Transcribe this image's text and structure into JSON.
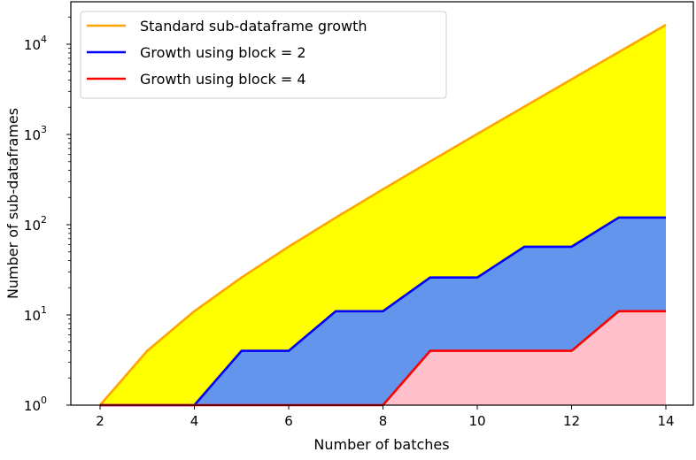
{
  "chart_data": {
    "type": "area",
    "title": "",
    "xlabel": "Number of batches",
    "ylabel": "Number of sub-dataframes",
    "yscale": "log",
    "ylim": [
      1,
      20000
    ],
    "xlim": [
      1.4,
      14.6
    ],
    "x": [
      2,
      3,
      4,
      5,
      6,
      7,
      8,
      9,
      10,
      11,
      12,
      13,
      14
    ],
    "x_ticks": [
      "2",
      "4",
      "6",
      "8",
      "10",
      "12",
      "14"
    ],
    "y_ticks": [
      "10^0",
      "10^1",
      "10^2",
      "10^3",
      "10^4"
    ],
    "grid": false,
    "legend_position": "upper left",
    "series": [
      {
        "name": "Standard sub-dataframe growth",
        "color": "#FFA500",
        "fill": "#FFFF00",
        "values": [
          1,
          4,
          11,
          26,
          57,
          120,
          247,
          502,
          1013,
          2036,
          4083,
          8178,
          16369
        ]
      },
      {
        "name": "Growth using block = 2",
        "color": "#0000FF",
        "fill": "#6495ED",
        "values": [
          1,
          1,
          1,
          4,
          4,
          11,
          11,
          26,
          26,
          57,
          57,
          120,
          120
        ]
      },
      {
        "name": "Growth using block = 4",
        "color": "#FF0000",
        "fill": "#FFC0CB",
        "values": [
          1,
          1,
          1,
          1,
          1,
          1,
          1,
          4,
          4,
          4,
          4,
          11,
          11
        ]
      }
    ]
  }
}
